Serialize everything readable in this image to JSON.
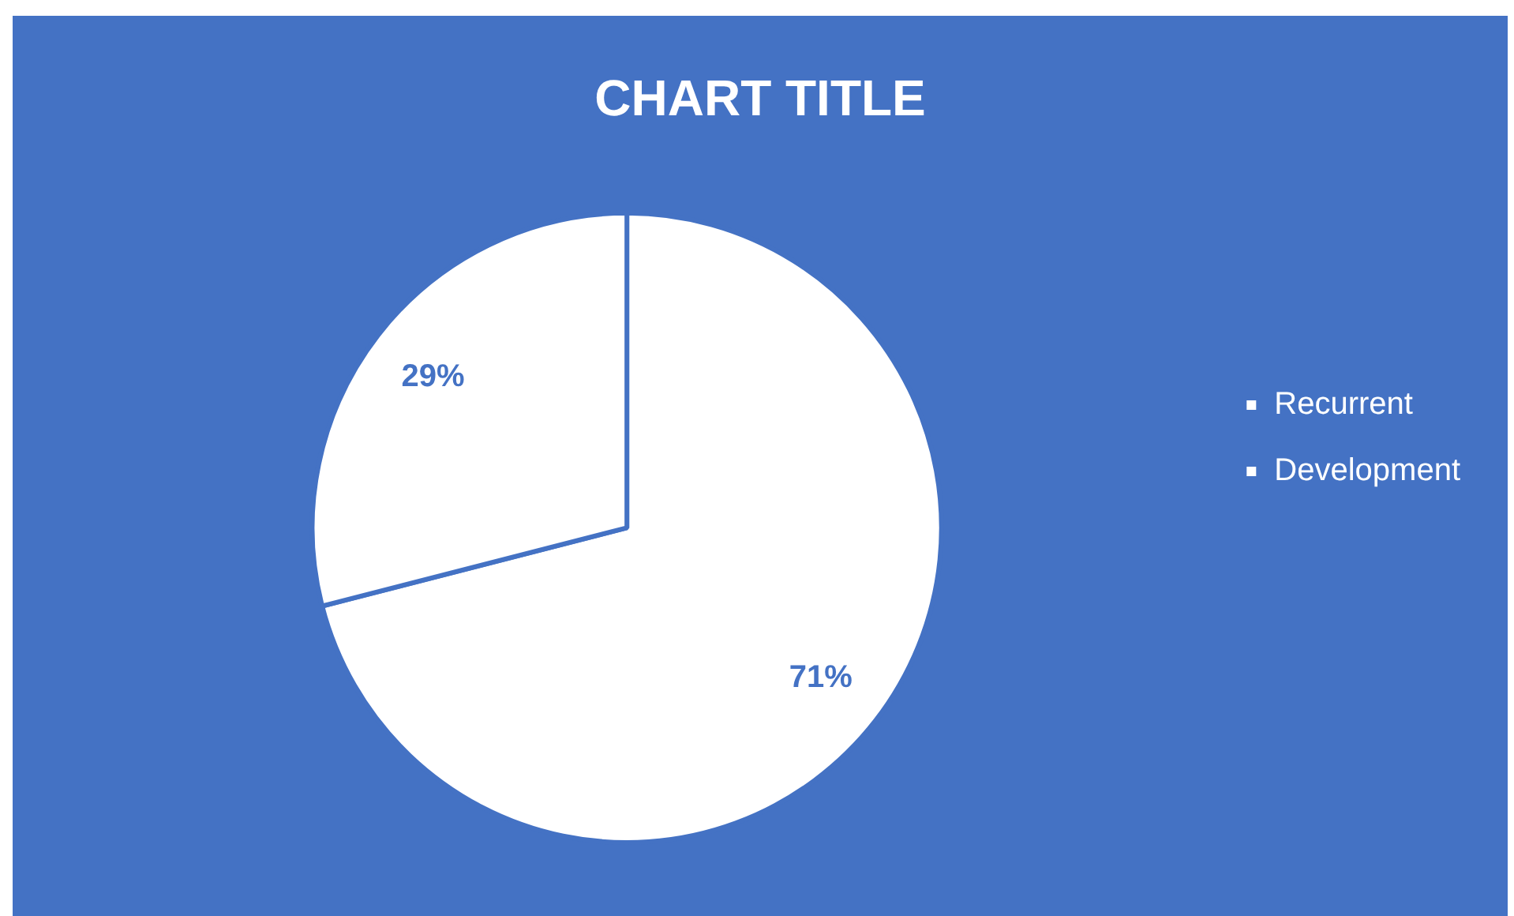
{
  "chart_data": {
    "type": "pie",
    "title": "CHART TITLE",
    "categories": [
      "Recurrent",
      "Development"
    ],
    "values": [
      71,
      29
    ],
    "colors": [
      "#ffffff",
      "#ffffff"
    ],
    "value_labels": [
      "71%",
      "29%"
    ],
    "legend": "right"
  }
}
